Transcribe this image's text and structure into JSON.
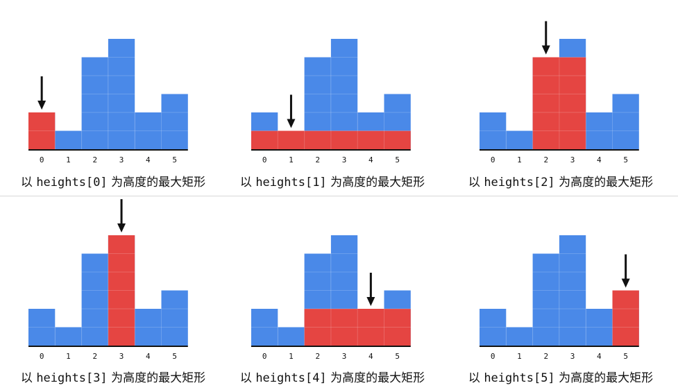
{
  "heights": [
    2,
    1,
    5,
    6,
    2,
    3
  ],
  "indices": [
    "0",
    "1",
    "2",
    "3",
    "4",
    "5"
  ],
  "colors": {
    "bar": "#4a89e8",
    "highlight": "#e54542",
    "axis": "#111111",
    "arrow": "#111111",
    "grid": "#6aa0ee"
  },
  "panels": [
    {
      "target": 0,
      "rect_start": 0,
      "rect_end": 0,
      "rect_height": 2,
      "prefix": "以 ",
      "code": "heights[0]",
      "suffix": " 为高度的最大矩形"
    },
    {
      "target": 1,
      "rect_start": 0,
      "rect_end": 5,
      "rect_height": 1,
      "prefix": "以 ",
      "code": "heights[1]",
      "suffix": " 为高度的最大矩形"
    },
    {
      "target": 2,
      "rect_start": 2,
      "rect_end": 3,
      "rect_height": 5,
      "prefix": "以 ",
      "code": "heights[2]",
      "suffix": " 为高度的最大矩形"
    },
    {
      "target": 3,
      "rect_start": 3,
      "rect_end": 3,
      "rect_height": 6,
      "prefix": "以 ",
      "code": "heights[3]",
      "suffix": " 为高度的最大矩形"
    },
    {
      "target": 4,
      "rect_start": 2,
      "rect_end": 5,
      "rect_height": 2,
      "prefix": "以 ",
      "code": "heights[4]",
      "suffix": " 为高度的最大矩形"
    },
    {
      "target": 5,
      "rect_start": 5,
      "rect_end": 5,
      "rect_height": 3,
      "prefix": "以 ",
      "code": "heights[5]",
      "suffix": " 为高度的最大矩形"
    }
  ]
}
